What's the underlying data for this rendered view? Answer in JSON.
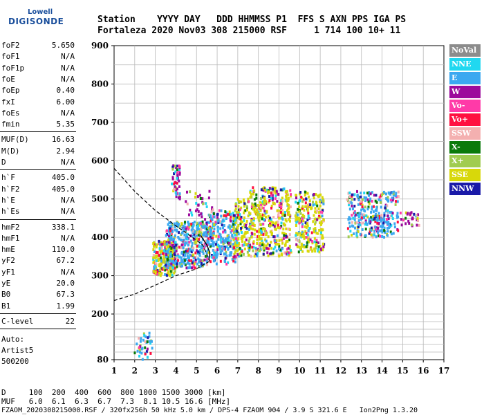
{
  "logo": {
    "top": "Lowell",
    "bottom": "DIGISONDE"
  },
  "header": {
    "row1": "Station    YYYY DAY   DDD HHMMSS P1  FFS S AXN PPS IGA PS",
    "row2": "Fortaleza 2020 Nov03 308 215000 RSF     1 714 100 10+ 11"
  },
  "params_group1": [
    {
      "label": "foF2",
      "value": "5.650"
    },
    {
      "label": "foF1",
      "value": "N/A"
    },
    {
      "label": "foF1p",
      "value": "N/A"
    },
    {
      "label": "foE",
      "value": "N/A"
    },
    {
      "label": "foEp",
      "value": "0.40"
    },
    {
      "label": "fxI",
      "value": "6.00"
    },
    {
      "label": "foEs",
      "value": "N/A"
    },
    {
      "label": "fmin",
      "value": "5.35"
    }
  ],
  "params_group2": [
    {
      "label": "MUF(D)",
      "value": "16.63"
    },
    {
      "label": "M(D)",
      "value": "2.94"
    },
    {
      "label": "D",
      "value": "N/A"
    }
  ],
  "params_group3": [
    {
      "label": "h`F",
      "value": "405.0"
    },
    {
      "label": "h`F2",
      "value": "405.0"
    },
    {
      "label": "h`E",
      "value": "N/A"
    },
    {
      "label": "h`Es",
      "value": "N/A"
    }
  ],
  "params_group4": [
    {
      "label": "hmF2",
      "value": "338.1"
    },
    {
      "label": "hmF1",
      "value": "N/A"
    },
    {
      "label": "hmE",
      "value": "110.0"
    },
    {
      "label": "yF2",
      "value": "67.2"
    },
    {
      "label": "yF1",
      "value": "N/A"
    },
    {
      "label": "yE",
      "value": "20.0"
    },
    {
      "label": "B0",
      "value": "67.3"
    },
    {
      "label": "B1",
      "value": "1.99"
    }
  ],
  "params_group5": [
    {
      "label": "C-level",
      "value": "22"
    }
  ],
  "auto": [
    "Auto:",
    "Artist5",
    "500200"
  ],
  "legend": [
    {
      "label": "NoVal",
      "color": "#8c8c8c"
    },
    {
      "label": "NNE",
      "color": "#20d8f0"
    },
    {
      "label": "E",
      "color": "#3ba8f0"
    },
    {
      "label": "W",
      "color": "#9c0a9c"
    },
    {
      "label": "Vo-",
      "color": "#ff3aa8"
    },
    {
      "label": "Vo+",
      "color": "#ff1040"
    },
    {
      "label": "SSW",
      "color": "#f4b0b0"
    },
    {
      "label": "X-",
      "color": "#0a7a0a"
    },
    {
      "label": "X+",
      "color": "#a0cc50"
    },
    {
      "label": "SSE",
      "color": "#d8d80a"
    },
    {
      "label": "NNW",
      "color": "#1a1aa8"
    }
  ],
  "bottom": {
    "d_row": "D     100  200  400  600  800 1000 1500 3000 [km]",
    "muf_row": "MUF   6.0  6.1  6.3  6.7  7.3  8.1 10.5 16.6 [MHz]",
    "footer": "FZAOM_2020308215000.RSF / 320fx256h 50 kHz 5.0 km / DPS-4 FZAOM 904 / 3.9 S 321.6 E   Ion2Png 1.3.20"
  },
  "chart_data": {
    "type": "scatter",
    "x_range": [
      1,
      17
    ],
    "y_range": [
      80,
      900
    ],
    "x_ticks": [
      1,
      2,
      3,
      4,
      5,
      6,
      7,
      8,
      9,
      10,
      11,
      12,
      13,
      14,
      15,
      16,
      17
    ],
    "y_ticks": [
      80,
      200,
      300,
      400,
      500,
      600,
      700,
      800,
      900
    ],
    "grid": true,
    "legend_position": "right",
    "xlabel": "",
    "ylabel": "",
    "clusters": [
      {
        "x": [
          2.0,
          2.9
        ],
        "y": [
          80,
          150
        ],
        "n": 40,
        "main": "#3ba8f0"
      },
      {
        "x": [
          2.9,
          4.0
        ],
        "y": [
          300,
          390
        ],
        "n": 260,
        "main": "#d8d80a"
      },
      {
        "x": [
          3.5,
          5.6
        ],
        "y": [
          320,
          440
        ],
        "n": 420,
        "main": "#3ba8f0"
      },
      {
        "x": [
          3.8,
          4.2
        ],
        "y": [
          500,
          590
        ],
        "n": 50,
        "main": "#9c0a9c"
      },
      {
        "x": [
          4.4,
          5.8
        ],
        "y": [
          420,
          520
        ],
        "n": 50,
        "main": "#9c0a9c"
      },
      {
        "x": [
          5.6,
          7.0
        ],
        "y": [
          330,
          470
        ],
        "n": 260,
        "main": "#3ba8f0"
      },
      {
        "x": [
          6.8,
          7.6
        ],
        "y": [
          350,
          500
        ],
        "n": 150,
        "main": "#d8d80a"
      },
      {
        "x": [
          7.6,
          9.6
        ],
        "y": [
          350,
          530
        ],
        "n": 420,
        "main": "#d8d80a"
      },
      {
        "x": [
          9.8,
          11.2
        ],
        "y": [
          360,
          520
        ],
        "n": 260,
        "main": "#d8d80a"
      },
      {
        "x": [
          12.3,
          14.8
        ],
        "y": [
          400,
          520
        ],
        "n": 320,
        "main": "#3ba8f0"
      },
      {
        "x": [
          14.8,
          15.8
        ],
        "y": [
          430,
          470
        ],
        "n": 30,
        "main": "#9c0a9c"
      }
    ],
    "profile_curve": [
      {
        "f": 1.0,
        "h": 580
      },
      {
        "f": 2.0,
        "h": 520
      },
      {
        "f": 3.0,
        "h": 470
      },
      {
        "f": 4.0,
        "h": 430
      },
      {
        "f": 4.8,
        "h": 400
      },
      {
        "f": 5.3,
        "h": 380
      },
      {
        "f": 5.65,
        "h": 338
      }
    ],
    "profile_lower": [
      {
        "f": 1.0,
        "h": 235
      },
      {
        "f": 2.0,
        "h": 252
      },
      {
        "f": 3.0,
        "h": 275
      },
      {
        "f": 4.0,
        "h": 300
      },
      {
        "f": 5.0,
        "h": 318
      },
      {
        "f": 5.65,
        "h": 338
      }
    ]
  }
}
